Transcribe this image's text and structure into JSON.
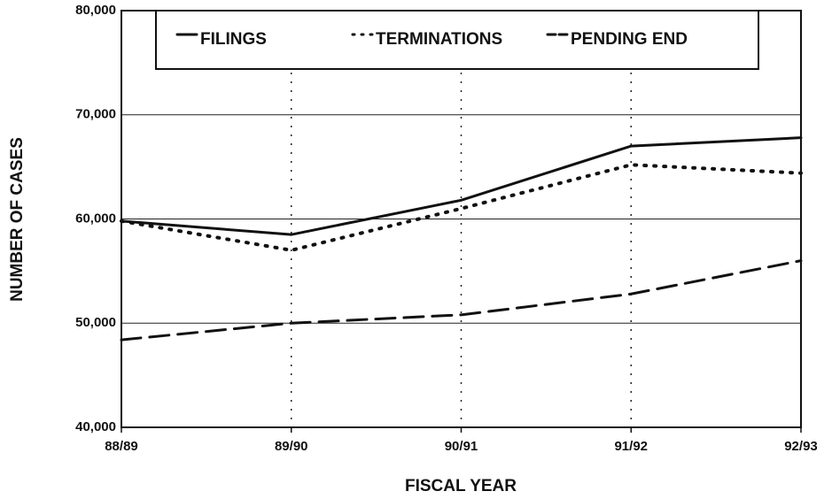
{
  "chart_data": {
    "type": "line",
    "x_label": "FISCAL YEAR",
    "y_label": "NUMBER OF CASES",
    "categories": [
      "88/89",
      "89/90",
      "90/91",
      "91/92",
      "92/93"
    ],
    "series": [
      {
        "name": "FILINGS",
        "color": "#111111",
        "style": "solid",
        "values": [
          59800,
          58500,
          61800,
          67000,
          67800
        ]
      },
      {
        "name": "TERMINATIONS",
        "color": "#111111",
        "style": "dotted",
        "values": [
          59800,
          57000,
          61000,
          65200,
          64400
        ]
      },
      {
        "name": "PENDING END",
        "color": "#111111",
        "style": "dashed",
        "values": [
          48400,
          50000,
          50800,
          52800,
          56000
        ]
      }
    ],
    "ylim": [
      40000,
      80000
    ],
    "yticks": [
      {
        "value": 40000,
        "label": "40,000"
      },
      {
        "value": 50000,
        "label": "50,000"
      },
      {
        "value": 60000,
        "label": "60,000"
      },
      {
        "value": 70000,
        "label": "70,000"
      },
      {
        "value": 80000,
        "label": "80,000"
      }
    ],
    "grid": true,
    "legend": "top"
  }
}
